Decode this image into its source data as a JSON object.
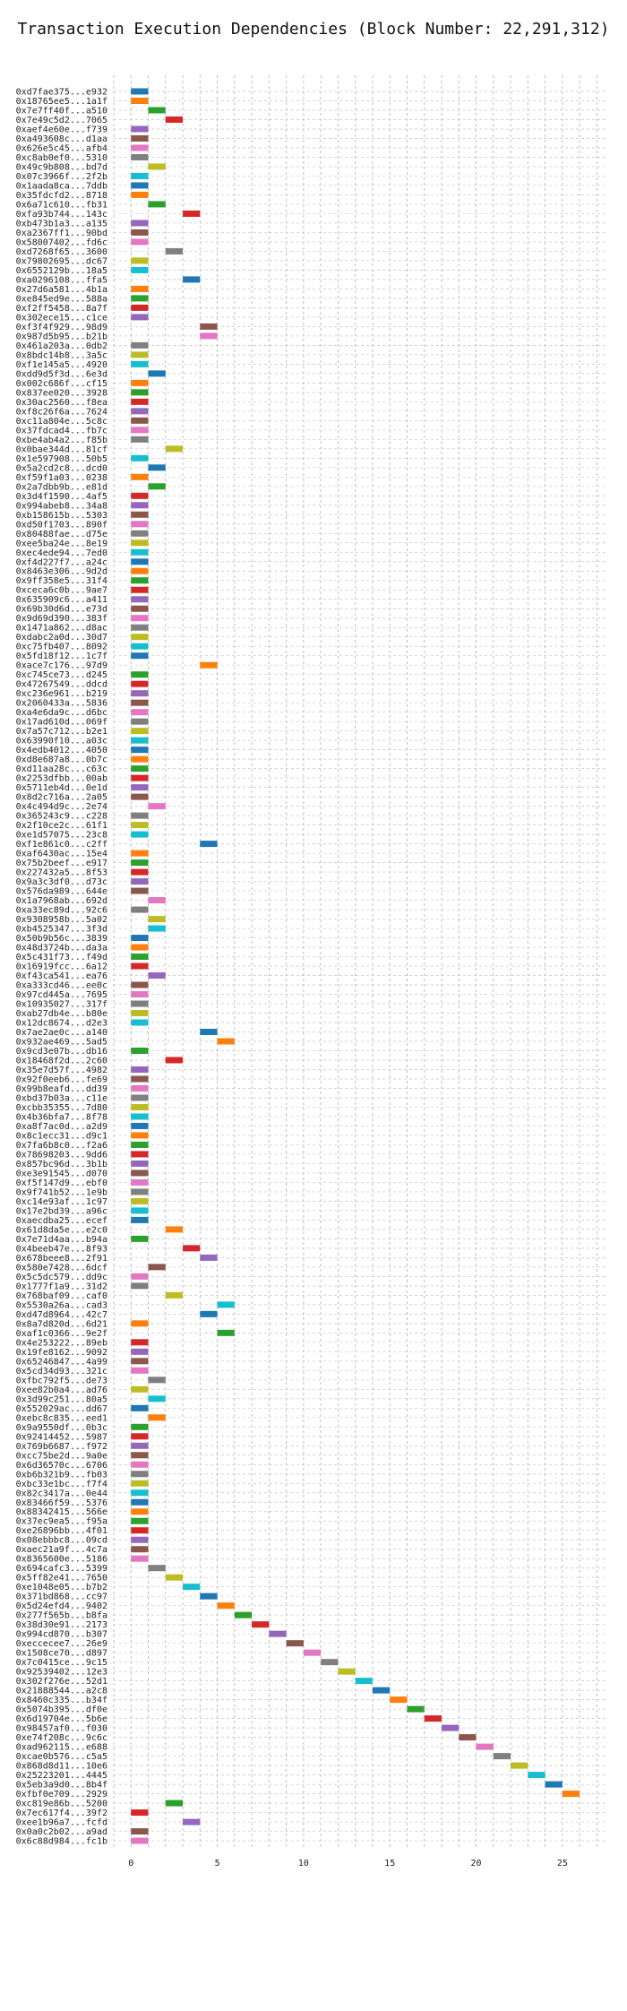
{
  "chart_data": {
    "type": "bar",
    "orientation": "horizontal",
    "title": "Transaction Execution Dependencies (Block Number: 22,291,312)",
    "xlabel": "",
    "ylabel": "",
    "xlim": [
      -1,
      27.5
    ],
    "xticks": [
      0,
      5,
      10,
      15,
      20,
      25
    ],
    "grid": true,
    "bar_length": 1,
    "palette": [
      "#1f77b4",
      "#ff7f0e",
      "#2ca02c",
      "#d62728",
      "#9467bd",
      "#8c564b",
      "#e377c2",
      "#7f7f7f",
      "#bcbd22",
      "#17becf"
    ],
    "categories": [
      "0xd7fae375...e932",
      "0x18765ee5...1a1f",
      "0x7e7ff40f...a510",
      "0x7e49c5d2...7065",
      "0xaef4e60e...f739",
      "0xa493608c...d1aa",
      "0x626e5c45...afb4",
      "0xc8ab0ef0...5310",
      "0x49c9b808...bd7d",
      "0x07c3966f...2f2b",
      "0x1aada8ca...7ddb",
      "0x35fdcfd2...8718",
      "0x6a71c610...fb31",
      "0xfa93b744...143c",
      "0xb473b1a3...a135",
      "0xa2367ff1...90bd",
      "0x58007402...fd6c",
      "0xd7268f65...3600",
      "0x79802695...dc67",
      "0x6552129b...18a5",
      "0xa0296108...ffa5",
      "0x27d6a581...4b1a",
      "0xe845ed9e...588a",
      "0xf2ff5458...8a7f",
      "0x302ece15...c1ce",
      "0xf3f4f929...98d9",
      "0x987d5b95...b21b",
      "0x461a203a...0db2",
      "0x8bdc14b8...3a5c",
      "0xf1e145a5...4920",
      "0xdd9d5f3d...6e3d",
      "0x002c686f...cf15",
      "0x837ee020...3928",
      "0x30ac2560...f8ea",
      "0xf8c26f6a...7624",
      "0xc11a804e...5c8c",
      "0x37fdcad4...fb7c",
      "0xbe4ab4a2...f85b",
      "0x0bae344d...81cf",
      "0x1e597908...50b5",
      "0x5a2cd2c8...dcd0",
      "0xf59f1a03...0238",
      "0x2a7dbb9b...e81d",
      "0x3d4f1590...4af5",
      "0x994abeb8...34a8",
      "0xb158615b...5303",
      "0xd50f1703...890f",
      "0x80488fae...d75e",
      "0xee5ba24e...8e19",
      "0xec4ede94...7ed0",
      "0xf4d227f7...a24c",
      "0x8463e306...9d2d",
      "0x9ff358e5...31f4",
      "0xceca6c0b...9ae7",
      "0x635909c6...a411",
      "0x69b30d6d...e73d",
      "0x9d69d390...383f",
      "0x1471a862...d8ac",
      "0xdabc2a0d...30d7",
      "0xc75fb407...8092",
      "0x5fd18f12...1c7f",
      "0xace7c176...97d9",
      "0xc745ce73...d245",
      "0x47267549...ddcd",
      "0xc236e961...b219",
      "0x2060433a...5836",
      "0xa4e6da9c...d6bc",
      "0x17ad610d...069f",
      "0x7a57c712...b2e1",
      "0x63990f10...a03c",
      "0x4edb4012...4050",
      "0xd8e687a8...0b7c",
      "0xd11aa28c...c63c",
      "0x2253dfbb...00ab",
      "0x5711eb4d...0e1d",
      "0x8d2c716a...2a05",
      "0x4c494d9c...2e74",
      "0x365243c9...c228",
      "0x2f10ce2c...61f1",
      "0xe1d57075...23c8",
      "0xf1e861c0...c2ff",
      "0xaf6430ac...15e4",
      "0x75b2beef...e917",
      "0x227432a5...8f53",
      "0x9a3c3df0...d73c",
      "0x576da989...644e",
      "0x1a7968ab...692d",
      "0xa33ec89d...92c6",
      "0x9308958b...5a02",
      "0xb4525347...3f3d",
      "0x50b9b56c...3839",
      "0x48d3724b...da3a",
      "0x5c431f73...f49d",
      "0x16919fcc...6a12",
      "0xf43ca541...ea76",
      "0xa333cd46...ee0c",
      "0x97cd445a...7695",
      "0x10935027...317f",
      "0xab27db4e...b80e",
      "0x12dc8674...d2e3",
      "0x7ae2ae0c...a140",
      "0x932ae469...5ad5",
      "0x9cd3e07b...db16",
      "0x18468f2d...2c60",
      "0x35e7d57f...4982",
      "0x92f0eeb6...fe69",
      "0x99b8eafd...dd39",
      "0xbd37b03a...c11e",
      "0xcbb35355...7d80",
      "0x4b36bfa7...8f78",
      "0xa8f7ac0d...a2d9",
      "0x8c1ecc31...d9c1",
      "0x7fa6b8c0...f2a6",
      "0x78698203...9dd6",
      "0x857bc96d...3b1b",
      "0xe3e91545...d070",
      "0xf5f147d9...ebf0",
      "0x9f741b52...1e9b",
      "0xc14e93af...1c97",
      "0x17e2bd39...a96c",
      "0xaecdba25...ecef",
      "0x61d8da5e...e2c0",
      "0x7e71d4aa...b94a",
      "0x4beeb47e...8f93",
      "0x678beee8...2f91",
      "0x580e7428...6dcf",
      "0x5c5dc579...dd9c",
      "0x1777f1a9...31d2",
      "0x768baf09...caf0",
      "0x5530a26a...cad3",
      "0xd47d8964...42c7",
      "0x8a7d820d...6d21",
      "0xaf1c0366...9e2f",
      "0x4e253222...89eb",
      "0x19fe8162...9092",
      "0x65246847...4a99",
      "0x5cd34d93...321c",
      "0xfbc792f5...de73",
      "0xee82b0a4...ad76",
      "0x3d99c251...80a5",
      "0x552029ac...dd67",
      "0xebc8c835...eed1",
      "0x9a9550df...0b3c",
      "0x92414452...5987",
      "0x769b6687...f972",
      "0xcc75be2d...9a0e",
      "0x6d36570c...6706",
      "0xb6b321b9...fb03",
      "0xbc33e1bc...f7f4",
      "0x82c3417a...0e44",
      "0x83466f59...5376",
      "0x88342415...566e",
      "0x37ec9ea5...f95a",
      "0xe26896bb...4f01",
      "0x08ebbbc8...09cd",
      "0xaec21a9f...4c7a",
      "0x8365600e...5186",
      "0x694cafc3...5399",
      "0x5ff82e41...7650",
      "0xe1048e05...b7b2",
      "0x371bd868...cc97",
      "0x5d24efd4...9402",
      "0x277f565b...b8fa",
      "0x38d30e91...2173",
      "0x994cd870...b307",
      "0xeccecee7...26e9",
      "0x1508ce70...d897",
      "0x7c0415ce...9c15",
      "0x92539402...12e3",
      "0x302f276e...52d1",
      "0x21888544...a2c8",
      "0x8460c335...b34f",
      "0x5074b395...df0e",
      "0x6d19704e...5b6e",
      "0x98457af0...f030",
      "0xe74f208c...9c6c",
      "0xad962115...e688",
      "0xcae0b576...c5a5",
      "0x868d8d11...10e6",
      "0x25223201...4445",
      "0x5eb3a9d0...8b4f",
      "0xfbf0e709...2929",
      "0xc819e86b...5200",
      "0x7ec617f4...39f2",
      "0xee1b96a7...fcfd",
      "0x0a0c2b02...a9ad",
      "0x6c88d984...fc1b"
    ],
    "start": [
      0,
      0,
      1,
      2,
      0,
      0,
      0,
      0,
      1,
      0,
      0,
      0,
      1,
      3,
      0,
      0,
      0,
      2,
      0,
      0,
      3,
      0,
      0,
      0,
      0,
      4,
      4,
      0,
      0,
      0,
      1,
      0,
      0,
      0,
      0,
      0,
      0,
      0,
      2,
      0,
      1,
      0,
      1,
      0,
      0,
      0,
      0,
      0,
      0,
      0,
      0,
      0,
      0,
      0,
      0,
      0,
      0,
      0,
      0,
      0,
      0,
      4,
      0,
      0,
      0,
      0,
      0,
      0,
      0,
      0,
      0,
      0,
      0,
      0,
      0,
      0,
      1,
      0,
      0,
      0,
      4,
      0,
      0,
      0,
      0,
      0,
      1,
      0,
      1,
      1,
      0,
      0,
      0,
      0,
      1,
      0,
      0,
      0,
      0,
      0,
      4,
      5,
      0,
      2,
      0,
      0,
      0,
      0,
      0,
      0,
      0,
      0,
      0,
      0,
      0,
      0,
      0,
      0,
      0,
      0,
      0,
      2,
      0,
      3,
      4,
      1,
      0,
      0,
      2,
      5,
      4,
      0,
      5,
      0,
      0,
      0,
      0,
      1,
      0,
      1,
      0,
      1,
      0,
      0,
      0,
      0,
      0,
      0,
      0,
      0,
      0,
      0,
      0,
      0,
      0,
      0,
      0,
      1,
      2,
      3,
      4,
      5,
      6,
      7,
      8,
      9,
      10,
      11,
      12,
      13,
      14,
      15,
      16,
      17,
      18,
      19,
      20,
      21,
      22,
      23,
      24,
      25,
      2,
      0,
      3,
      0,
      0
    ],
    "color_index": [
      0,
      1,
      2,
      3,
      4,
      5,
      6,
      7,
      8,
      9,
      0,
      1,
      2,
      3,
      4,
      5,
      6,
      7,
      8,
      9,
      0,
      1,
      2,
      3,
      4,
      5,
      6,
      7,
      8,
      9,
      0,
      1,
      2,
      3,
      4,
      5,
      6,
      7,
      8,
      9,
      0,
      1,
      2,
      3,
      4,
      5,
      6,
      7,
      8,
      9,
      0,
      1,
      2,
      3,
      4,
      5,
      6,
      7,
      8,
      9,
      0,
      1,
      2,
      3,
      4,
      5,
      6,
      7,
      8,
      9,
      0,
      1,
      2,
      3,
      4,
      5,
      6,
      7,
      8,
      9,
      0,
      1,
      2,
      3,
      4,
      5,
      6,
      7,
      8,
      9,
      0,
      1,
      2,
      3,
      4,
      5,
      6,
      7,
      8,
      9,
      0,
      1,
      2,
      3,
      4,
      5,
      6,
      7,
      8,
      9,
      0,
      1,
      2,
      3,
      4,
      5,
      6,
      7,
      8,
      9,
      0,
      1,
      2,
      3,
      4,
      5,
      6,
      7,
      8,
      9,
      0,
      1,
      2,
      3,
      4,
      5,
      6,
      7,
      8,
      9,
      0,
      1,
      2,
      3,
      4,
      5,
      6,
      7,
      8,
      9,
      0,
      1,
      2,
      3,
      4,
      5,
      6,
      7,
      8,
      9,
      0,
      1,
      2,
      3,
      4,
      5,
      6,
      7,
      8,
      9,
      0,
      1,
      2,
      3,
      4,
      5,
      6,
      7,
      8,
      9,
      0,
      1,
      2,
      3,
      4,
      5,
      6
    ]
  }
}
